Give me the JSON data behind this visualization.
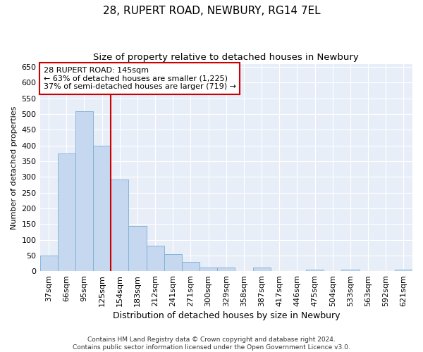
{
  "title": "28, RUPERT ROAD, NEWBURY, RG14 7EL",
  "subtitle": "Size of property relative to detached houses in Newbury",
  "xlabel": "Distribution of detached houses by size in Newbury",
  "ylabel": "Number of detached properties",
  "footer_line1": "Contains HM Land Registry data © Crown copyright and database right 2024.",
  "footer_line2": "Contains public sector information licensed under the Open Government Licence v3.0.",
  "categories": [
    "37sqm",
    "66sqm",
    "95sqm",
    "125sqm",
    "154sqm",
    "183sqm",
    "212sqm",
    "241sqm",
    "271sqm",
    "300sqm",
    "329sqm",
    "358sqm",
    "387sqm",
    "417sqm",
    "446sqm",
    "475sqm",
    "504sqm",
    "533sqm",
    "563sqm",
    "592sqm",
    "621sqm"
  ],
  "values": [
    50,
    375,
    510,
    400,
    292,
    143,
    82,
    55,
    29,
    11,
    11,
    0,
    11,
    0,
    0,
    5,
    0,
    5,
    0,
    0,
    5
  ],
  "bar_color": "#c5d8f0",
  "bar_edge_color": "#7aadd4",
  "vline_color": "#cc0000",
  "vline_x_index": 4,
  "annotation_text_line1": "28 RUPERT ROAD: 145sqm",
  "annotation_text_line2": "← 63% of detached houses are smaller (1,225)",
  "annotation_text_line3": "37% of semi-detached houses are larger (719) →",
  "annotation_box_color": "white",
  "annotation_box_edge": "#cc0000",
  "ylim": [
    0,
    660
  ],
  "yticks": [
    0,
    50,
    100,
    150,
    200,
    250,
    300,
    350,
    400,
    450,
    500,
    550,
    600,
    650
  ],
  "bg_color": "#e8eef8",
  "title_fontsize": 11,
  "subtitle_fontsize": 9.5,
  "axis_fontsize": 8,
  "xlabel_fontsize": 9,
  "ylabel_fontsize": 8,
  "annotation_fontsize": 8,
  "footer_fontsize": 6.5
}
